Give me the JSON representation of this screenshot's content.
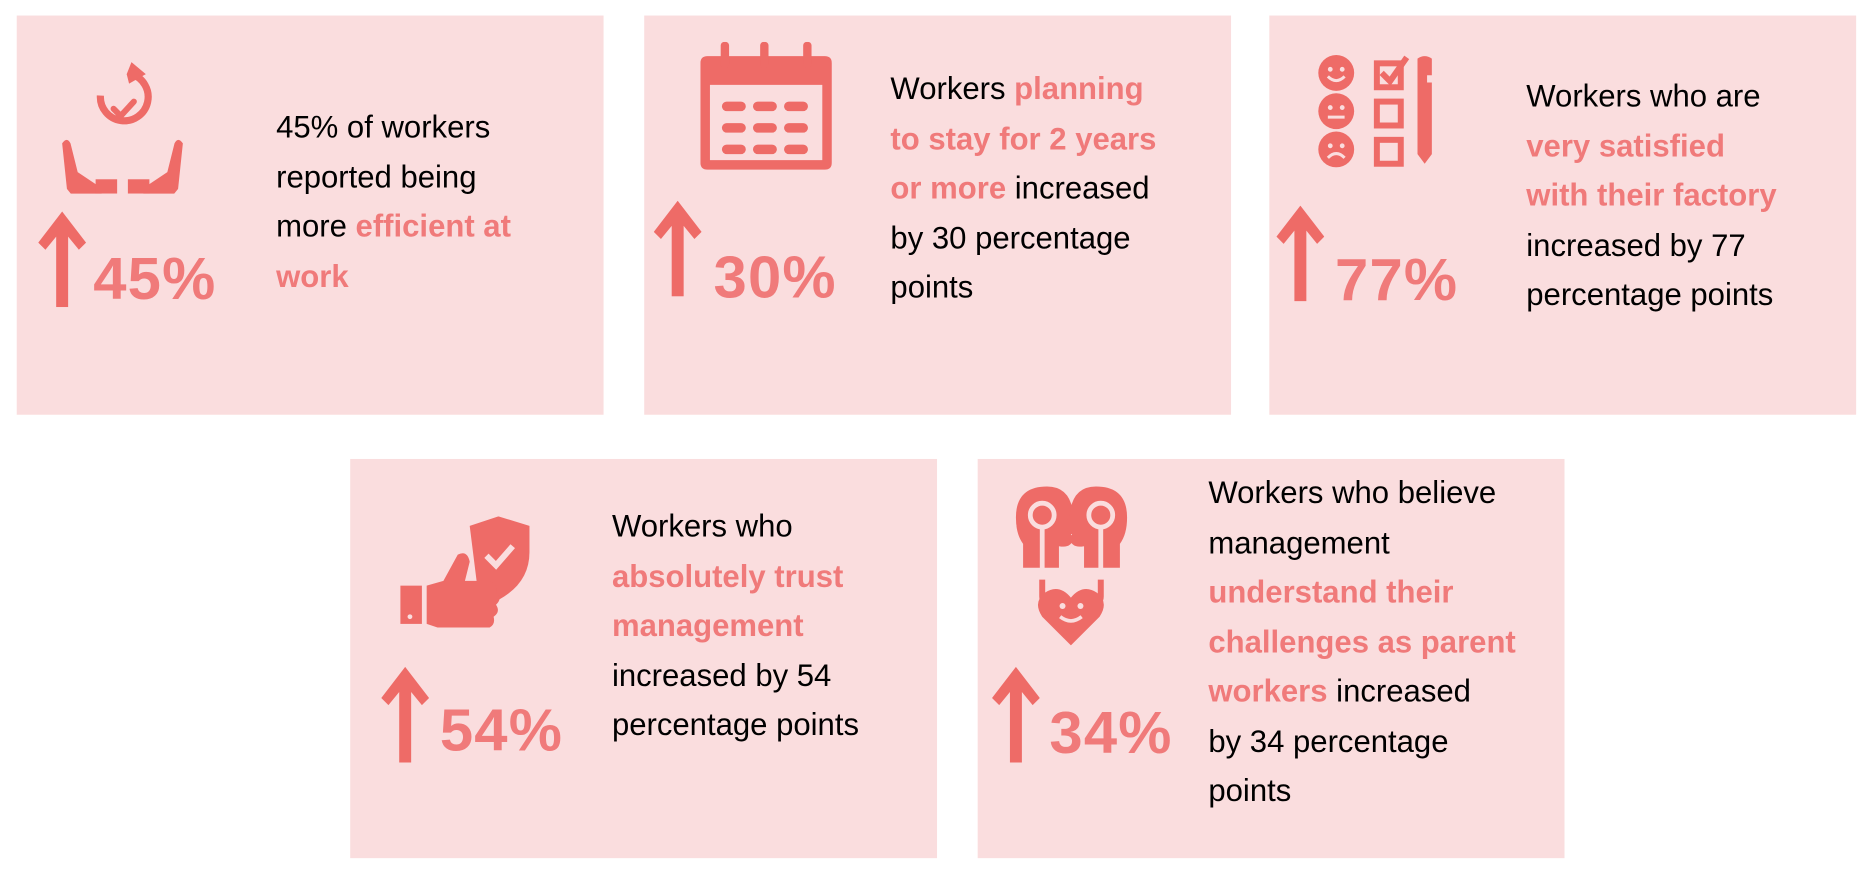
{
  "colors": {
    "card_bg": "#FADDDE",
    "icon": "#EE6B67",
    "highlight": "#F07A7A",
    "text": "#000000"
  },
  "cards": [
    {
      "icon": "hands-holding-check-cycle-icon",
      "percent": "45%",
      "direction": "up-arrow-icon",
      "lines": [
        [
          {
            "t": "45% of workers",
            "hl": false
          }
        ],
        [
          {
            "t": "reported being",
            "hl": false
          }
        ],
        [
          {
            "t": "more ",
            "hl": false
          },
          {
            "t": "efficient at",
            "hl": true
          }
        ],
        [
          {
            "t": "work",
            "hl": true
          }
        ]
      ]
    },
    {
      "icon": "calendar-icon",
      "percent": "30%",
      "direction": "up-arrow-icon",
      "lines": [
        [
          {
            "t": "Workers ",
            "hl": false
          },
          {
            "t": "planning",
            "hl": true
          }
        ],
        [
          {
            "t": "to stay for 2 years",
            "hl": true
          }
        ],
        [
          {
            "t": "or more",
            "hl": true
          },
          {
            "t": " increased",
            "hl": false
          }
        ],
        [
          {
            "t": "by 30 percentage",
            "hl": false
          }
        ],
        [
          {
            "t": "points",
            "hl": false
          }
        ]
      ]
    },
    {
      "icon": "satisfaction-survey-icon",
      "percent": "77%",
      "direction": "up-arrow-icon",
      "lines": [
        [
          {
            "t": "Workers who are",
            "hl": false
          }
        ],
        [
          {
            "t": "very satisfied",
            "hl": true
          }
        ],
        [
          {
            "t": "with their factory",
            "hl": true
          }
        ],
        [
          {
            "t": "increased by 77",
            "hl": false
          }
        ],
        [
          {
            "t": "percentage points",
            "hl": false
          }
        ]
      ]
    },
    {
      "icon": "thumbs-up-shield-icon",
      "percent": "54%",
      "direction": "up-arrow-icon",
      "lines": [
        [
          {
            "t": "Workers who",
            "hl": false
          }
        ],
        [
          {
            "t": "absolutely trust",
            "hl": true
          }
        ],
        [
          {
            "t": "management",
            "hl": true
          }
        ],
        [
          {
            "t": "increased by 54",
            "hl": false
          }
        ],
        [
          {
            "t": "percentage points",
            "hl": false
          }
        ]
      ]
    },
    {
      "icon": "heads-connected-heart-icon",
      "percent": "34%",
      "direction": "up-arrow-icon",
      "lines": [
        [
          {
            "t": "Workers who believe",
            "hl": false
          }
        ],
        [
          {
            "t": "management",
            "hl": false
          }
        ],
        [
          {
            "t": "understand their",
            "hl": true
          }
        ],
        [
          {
            "t": "challenges as parent",
            "hl": true
          }
        ],
        [
          {
            "t": "workers",
            "hl": true
          },
          {
            "t": " increased",
            "hl": false
          }
        ],
        [
          {
            "t": "by 34 percentage",
            "hl": false
          }
        ],
        [
          {
            "t": "points",
            "hl": false
          }
        ]
      ]
    }
  ]
}
